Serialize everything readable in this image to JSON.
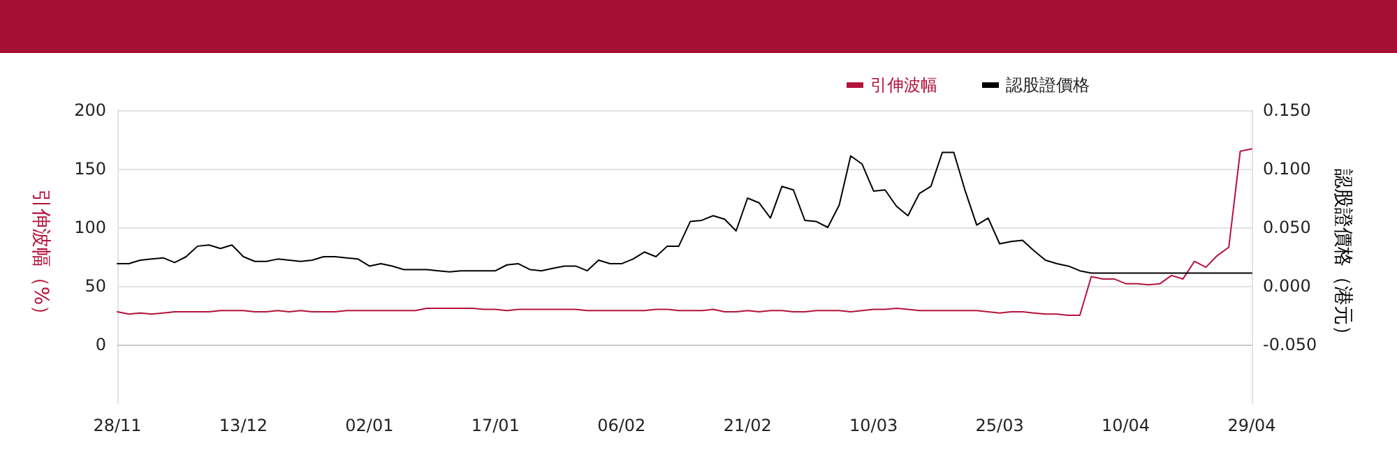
{
  "chart_data": {
    "type": "line",
    "categories": [
      "28/11",
      null,
      null,
      null,
      null,
      null,
      null,
      null,
      null,
      null,
      null,
      "13/12",
      null,
      null,
      null,
      null,
      null,
      null,
      null,
      null,
      null,
      null,
      "02/01",
      null,
      null,
      null,
      null,
      null,
      null,
      null,
      null,
      null,
      null,
      "17/01",
      null,
      null,
      null,
      null,
      null,
      null,
      null,
      null,
      null,
      null,
      "06/02",
      null,
      null,
      null,
      null,
      null,
      null,
      null,
      null,
      null,
      null,
      "21/02",
      null,
      null,
      null,
      null,
      null,
      null,
      null,
      null,
      null,
      null,
      "10/03",
      null,
      null,
      null,
      null,
      null,
      null,
      null,
      null,
      null,
      null,
      "25/03",
      null,
      null,
      null,
      null,
      null,
      null,
      null,
      null,
      null,
      null,
      "10/04",
      null,
      null,
      null,
      null,
      null,
      null,
      null,
      null,
      null,
      null,
      "29/04"
    ],
    "ylabel": "引伸波幅（%）",
    "y2label": "認股證價格（港元）",
    "series": [
      {
        "name": "引伸波幅",
        "color": "#b5123c",
        "values": [
          28,
          26,
          27,
          26,
          27,
          28,
          28,
          28,
          28,
          29,
          29,
          29,
          28,
          28,
          29,
          28,
          29,
          28,
          28,
          28,
          29,
          29,
          29,
          29,
          29,
          29,
          29,
          31,
          31,
          31,
          31,
          31,
          30,
          30,
          29,
          30,
          30,
          30,
          30,
          30,
          30,
          29,
          29,
          29,
          29,
          29,
          29,
          30,
          30,
          29,
          29,
          29,
          30,
          28,
          28,
          29,
          28,
          29,
          29,
          28,
          28,
          29,
          29,
          29,
          28,
          29,
          30,
          30,
          31,
          30,
          29,
          29,
          29,
          29,
          29,
          29,
          28,
          27,
          28,
          28,
          27,
          26,
          26,
          25,
          25,
          58,
          56,
          56,
          52,
          52,
          51,
          52,
          59,
          56,
          71,
          66,
          76,
          83,
          165,
          167
        ]
      },
      {
        "name": "認股證價格",
        "color": "#000000",
        "axis": "y2",
        "values": [
          0.019,
          0.019,
          0.022,
          0.023,
          0.024,
          0.02,
          0.025,
          0.034,
          0.035,
          0.032,
          0.035,
          0.025,
          0.021,
          0.021,
          0.023,
          0.022,
          0.021,
          0.022,
          0.025,
          0.025,
          0.024,
          0.023,
          0.017,
          0.019,
          0.017,
          0.014,
          0.014,
          0.014,
          0.013,
          0.012,
          0.013,
          0.013,
          0.013,
          0.013,
          0.018,
          0.019,
          0.014,
          0.013,
          0.015,
          0.017,
          0.017,
          0.013,
          0.022,
          0.019,
          0.019,
          0.023,
          0.029,
          0.025,
          0.034,
          0.034,
          0.055,
          0.056,
          0.06,
          0.057,
          0.047,
          0.075,
          0.071,
          0.058,
          0.085,
          0.082,
          0.056,
          0.055,
          0.05,
          0.069,
          0.111,
          0.104,
          0.081,
          0.082,
          0.068,
          0.06,
          0.079,
          0.085,
          0.114,
          0.114,
          0.081,
          0.052,
          0.058,
          0.036,
          0.038,
          0.039,
          0.03,
          0.022,
          0.019,
          0.017,
          0.013,
          0.011,
          0.011,
          0.011,
          0.011,
          0.011,
          0.011,
          0.011,
          0.011,
          0.011,
          0.011,
          0.011,
          0.011,
          0.011,
          0.011,
          0.011
        ]
      }
    ],
    "ylim": [
      -50,
      200
    ],
    "yticks": [
      0,
      50,
      100,
      150,
      200
    ],
    "y2lim": [
      -0.1,
      0.15
    ],
    "y2ticks": [
      {
        "value": -0.05,
        "label": "-0.050"
      },
      {
        "value": 0,
        "label": "0.000"
      },
      {
        "value": 0.05,
        "label": "0.050"
      },
      {
        "value": 0.1,
        "label": "0.100"
      },
      {
        "value": 0.15,
        "label": "0.150"
      }
    ],
    "grid": "y",
    "legend": "top right",
    "marker": "none",
    "line_style": "solid"
  }
}
